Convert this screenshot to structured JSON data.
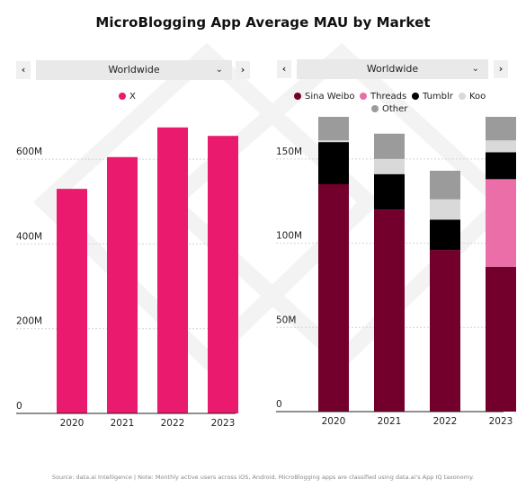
{
  "title": "MicroBlogging App Average MAU by Market",
  "footer": "Source: data.ai Intelligence | Note: Monthly active users across iOS, Android. MicroBlogging apps are classified using data.ai's App IQ taxonomy.",
  "icons": {
    "prev": "chevron-left-icon",
    "next": "chevron-right-icon",
    "dropdown": "chevron-down-icon"
  },
  "nav": {
    "prev": "‹",
    "next": "›",
    "caret": "⌄"
  },
  "left_panel": {
    "market": "Worldwide"
  },
  "right_panel": {
    "market": "Worldwide"
  },
  "chart_data": [
    {
      "type": "bar",
      "categories": [
        "2020",
        "2021",
        "2022",
        "2023"
      ],
      "series": [
        {
          "name": "X",
          "color": "#ea1a6e",
          "values": [
            530,
            605,
            675,
            655
          ]
        }
      ],
      "ylim": [
        0,
        700
      ],
      "yticks": [
        0,
        200,
        400,
        600
      ],
      "ytick_labels": [
        "0",
        "200M",
        "400M",
        "600M"
      ],
      "grid": true,
      "legend": "top"
    },
    {
      "type": "bar",
      "stacked": true,
      "categories": [
        "2020",
        "2021",
        "2022",
        "2023"
      ],
      "series": [
        {
          "name": "Sina Weibo",
          "color": "#73002c",
          "values": [
            135,
            120,
            96,
            86
          ]
        },
        {
          "name": "Threads",
          "color": "#ec6ea8",
          "values": [
            0,
            0,
            0,
            52
          ]
        },
        {
          "name": "Tumblr",
          "color": "#000000",
          "values": [
            25,
            21,
            18,
            16
          ]
        },
        {
          "name": "Koo",
          "color": "#d9d9d9",
          "values": [
            1,
            9,
            12,
            7
          ]
        },
        {
          "name": "Other",
          "color": "#9b9b9b",
          "values": [
            14,
            15,
            17,
            14
          ]
        }
      ],
      "ylim": [
        0,
        175
      ],
      "yticks": [
        0,
        50,
        100,
        150
      ],
      "ytick_labels": [
        "0",
        "50M",
        "100M",
        "150M"
      ],
      "grid": true,
      "legend": "top"
    }
  ]
}
